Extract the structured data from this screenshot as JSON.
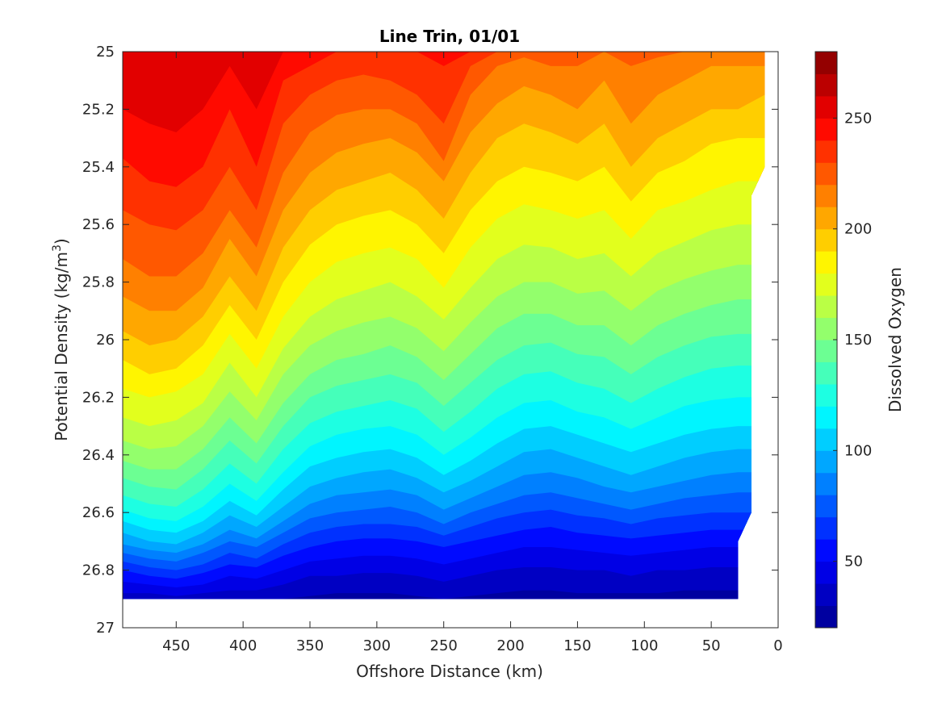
{
  "chart_data": {
    "type": "heatmap",
    "subtype": "filled-contour",
    "title": "Line Trin, 01/01",
    "xlabel": "Offshore Distance (km)",
    "ylabel": "Potential Density (kg/m",
    "ylabel_superscript": "3",
    "ylabel_suffix": ")",
    "colorbar_label": "Dissolved Oxygen",
    "x_axis_reversed": true,
    "y_axis_reversed": true,
    "xlim": [
      490,
      0
    ],
    "ylim": [
      25,
      27
    ],
    "x_ticks": [
      450,
      400,
      350,
      300,
      250,
      200,
      150,
      100,
      50,
      0
    ],
    "x_tick_labels": [
      "450",
      "400",
      "350",
      "300",
      "250",
      "200",
      "150",
      "100",
      "50",
      "0"
    ],
    "y_ticks": [
      25,
      25.2,
      25.4,
      25.6,
      25.8,
      26,
      26.2,
      26.4,
      26.6,
      26.8,
      27
    ],
    "y_tick_labels": [
      "25",
      "25.2",
      "25.4",
      "25.6",
      "25.8",
      "26",
      "26.2",
      "26.4",
      "26.6",
      "26.8",
      "27"
    ],
    "colorbar_range": [
      20,
      280
    ],
    "colorbar_level_step": 10,
    "colorbar_ticks": [
      50,
      100,
      150,
      200,
      250
    ],
    "colorbar_tick_labels": [
      "50",
      "100",
      "150",
      "200",
      "250"
    ],
    "colormap": "jet",
    "colormap_colors": [
      "#00008f",
      "#0000ff",
      "#00ffff",
      "#ffff00",
      "#ff0000",
      "#800000"
    ],
    "data_extent": {
      "x_range_km": [
        490,
        20
      ],
      "bottom_density_boundary": 26.9,
      "right_edge_x": [
        10,
        10,
        20,
        20,
        30,
        30
      ],
      "right_edge_density": [
        25,
        25.4,
        25.5,
        26.6,
        26.7,
        26.9
      ]
    },
    "x": [
      490,
      470,
      450,
      430,
      410,
      390,
      370,
      350,
      330,
      310,
      290,
      270,
      250,
      230,
      210,
      190,
      170,
      150,
      130,
      110,
      90,
      70,
      50,
      30,
      10
    ],
    "isolines": [
      {
        "level": 250,
        "density": [
          25.2,
          25.25,
          25.28,
          25.2,
          25.05,
          25.2,
          25.0,
          25.0,
          25.0,
          25.0,
          25.0,
          25.0,
          25.0,
          25.0,
          25.0,
          25.0,
          25.0,
          25.0,
          25.0,
          25.0,
          25.0,
          25.0,
          25.0,
          25.0,
          25.0
        ]
      },
      {
        "level": 240,
        "density": [
          25.37,
          25.45,
          25.47,
          25.4,
          25.2,
          25.4,
          25.1,
          25.05,
          25.0,
          25.0,
          25.0,
          25.0,
          25.05,
          25.0,
          25.0,
          25.0,
          25.0,
          25.0,
          25.0,
          25.0,
          25.0,
          25.0,
          25.0,
          25.0,
          25.0
        ]
      },
      {
        "level": 230,
        "density": [
          25.55,
          25.6,
          25.62,
          25.55,
          25.4,
          25.55,
          25.25,
          25.15,
          25.1,
          25.08,
          25.1,
          25.15,
          25.25,
          25.05,
          25.0,
          25.0,
          25.0,
          25.0,
          25.0,
          25.0,
          25.0,
          25.0,
          25.0,
          25.0,
          25.0
        ]
      },
      {
        "level": 220,
        "density": [
          25.72,
          25.78,
          25.78,
          25.7,
          25.55,
          25.68,
          25.42,
          25.28,
          25.22,
          25.2,
          25.2,
          25.25,
          25.38,
          25.15,
          25.05,
          25.02,
          25.05,
          25.05,
          25.0,
          25.05,
          25.02,
          25.0,
          25.0,
          25.0,
          25.0
        ]
      },
      {
        "level": 210,
        "density": [
          25.85,
          25.9,
          25.9,
          25.82,
          25.65,
          25.78,
          25.55,
          25.42,
          25.35,
          25.32,
          25.3,
          25.35,
          25.45,
          25.28,
          25.18,
          25.12,
          25.15,
          25.2,
          25.1,
          25.25,
          25.15,
          25.1,
          25.05,
          25.05,
          25.05
        ]
      },
      {
        "level": 200,
        "density": [
          25.97,
          26.02,
          26.0,
          25.92,
          25.78,
          25.9,
          25.68,
          25.55,
          25.48,
          25.45,
          25.42,
          25.48,
          25.58,
          25.42,
          25.3,
          25.25,
          25.28,
          25.32,
          25.25,
          25.4,
          25.3,
          25.25,
          25.2,
          25.2,
          25.15
        ]
      },
      {
        "level": 190,
        "density": [
          26.07,
          26.12,
          26.1,
          26.02,
          25.88,
          26.0,
          25.8,
          25.67,
          25.6,
          25.57,
          25.55,
          25.6,
          25.7,
          25.55,
          25.45,
          25.4,
          25.42,
          25.45,
          25.4,
          25.52,
          25.42,
          25.38,
          25.32,
          25.3,
          25.3
        ]
      },
      {
        "level": 180,
        "density": [
          26.17,
          26.2,
          26.18,
          26.12,
          25.98,
          26.1,
          25.92,
          25.8,
          25.73,
          25.7,
          25.68,
          25.72,
          25.82,
          25.68,
          25.58,
          25.53,
          25.55,
          25.58,
          25.55,
          25.65,
          25.55,
          25.52,
          25.48,
          25.45,
          25.45
        ]
      },
      {
        "level": 170,
        "density": [
          26.27,
          26.3,
          26.28,
          26.22,
          26.08,
          26.2,
          26.03,
          25.92,
          25.86,
          25.83,
          25.8,
          25.85,
          25.93,
          25.82,
          25.72,
          25.67,
          25.68,
          25.72,
          25.7,
          25.78,
          25.7,
          25.66,
          25.62,
          25.6,
          25.6
        ]
      },
      {
        "level": 160,
        "density": [
          26.35,
          26.38,
          26.37,
          26.3,
          26.18,
          26.28,
          26.12,
          26.02,
          25.97,
          25.94,
          25.92,
          25.96,
          26.04,
          25.94,
          25.85,
          25.8,
          25.8,
          25.84,
          25.83,
          25.9,
          25.83,
          25.79,
          25.76,
          25.74,
          25.74
        ]
      },
      {
        "level": 150,
        "density": [
          26.42,
          26.45,
          26.45,
          26.38,
          26.27,
          26.36,
          26.22,
          26.12,
          26.07,
          26.05,
          26.02,
          26.06,
          26.14,
          26.05,
          25.96,
          25.91,
          25.91,
          25.95,
          25.95,
          26.02,
          25.95,
          25.91,
          25.88,
          25.86,
          25.86
        ]
      },
      {
        "level": 140,
        "density": [
          26.48,
          26.51,
          26.52,
          26.45,
          26.35,
          26.43,
          26.3,
          26.2,
          26.16,
          26.14,
          26.12,
          26.15,
          26.23,
          26.15,
          26.07,
          26.02,
          26.01,
          26.05,
          26.06,
          26.12,
          26.06,
          26.02,
          25.99,
          25.98,
          25.98
        ]
      },
      {
        "level": 130,
        "density": [
          26.54,
          26.57,
          26.58,
          26.52,
          26.43,
          26.5,
          26.38,
          26.29,
          26.25,
          26.23,
          26.21,
          26.24,
          26.32,
          26.25,
          26.17,
          26.12,
          26.11,
          26.15,
          26.17,
          26.22,
          26.17,
          26.13,
          26.1,
          26.09,
          26.09
        ]
      },
      {
        "level": 120,
        "density": [
          26.59,
          26.62,
          26.63,
          26.58,
          26.5,
          26.56,
          26.46,
          26.37,
          26.33,
          26.31,
          26.3,
          26.33,
          26.4,
          26.34,
          26.27,
          26.22,
          26.21,
          26.25,
          26.27,
          26.31,
          26.27,
          26.23,
          26.21,
          26.2,
          26.2
        ]
      },
      {
        "level": 110,
        "density": [
          26.63,
          26.66,
          26.67,
          26.63,
          26.56,
          26.61,
          26.52,
          26.44,
          26.41,
          26.39,
          26.38,
          26.41,
          26.47,
          26.42,
          26.36,
          26.31,
          26.3,
          26.33,
          26.36,
          26.39,
          26.36,
          26.33,
          26.31,
          26.3,
          26.3
        ]
      },
      {
        "level": 100,
        "density": [
          26.67,
          26.7,
          26.71,
          26.67,
          26.61,
          26.65,
          26.58,
          26.51,
          26.48,
          26.46,
          26.45,
          26.48,
          26.53,
          26.49,
          26.44,
          26.39,
          26.38,
          26.41,
          26.44,
          26.47,
          26.44,
          26.41,
          26.39,
          26.38,
          26.38
        ]
      },
      {
        "level": 90,
        "density": [
          26.71,
          26.73,
          26.74,
          26.71,
          26.66,
          26.69,
          26.63,
          26.57,
          26.54,
          26.53,
          26.52,
          26.54,
          26.59,
          26.55,
          26.51,
          26.47,
          26.46,
          26.48,
          26.51,
          26.53,
          26.51,
          26.49,
          26.47,
          26.46,
          26.46
        ]
      },
      {
        "level": 80,
        "density": [
          26.74,
          26.76,
          26.77,
          26.74,
          26.7,
          26.72,
          26.67,
          26.62,
          26.6,
          26.59,
          26.58,
          26.6,
          26.64,
          26.6,
          26.57,
          26.54,
          26.53,
          26.55,
          26.57,
          26.59,
          26.57,
          26.55,
          26.54,
          26.53,
          26.53
        ]
      },
      {
        "level": 70,
        "density": [
          26.77,
          26.79,
          26.8,
          26.78,
          26.74,
          26.76,
          26.71,
          26.67,
          26.65,
          26.64,
          26.64,
          26.65,
          26.68,
          26.65,
          26.62,
          26.6,
          26.59,
          26.61,
          26.62,
          26.64,
          26.62,
          26.61,
          26.6,
          26.6,
          26.6
        ]
      },
      {
        "level": 60,
        "density": [
          26.8,
          26.82,
          26.83,
          26.81,
          26.78,
          26.79,
          26.75,
          26.72,
          26.7,
          26.69,
          26.69,
          26.7,
          26.72,
          26.7,
          26.68,
          26.66,
          26.65,
          26.67,
          26.68,
          26.69,
          26.68,
          26.67,
          26.66,
          26.66,
          26.66
        ]
      },
      {
        "level": 50,
        "density": [
          26.84,
          26.85,
          26.86,
          26.85,
          26.82,
          26.83,
          26.8,
          26.77,
          26.76,
          26.75,
          26.75,
          26.76,
          26.78,
          26.76,
          26.74,
          26.72,
          26.72,
          26.73,
          26.74,
          26.75,
          26.74,
          26.73,
          26.72,
          26.72,
          26.72
        ]
      },
      {
        "level": 40,
        "density": [
          26.88,
          26.88,
          26.89,
          26.88,
          26.87,
          26.87,
          26.85,
          26.82,
          26.82,
          26.81,
          26.81,
          26.82,
          26.84,
          26.82,
          26.8,
          26.79,
          26.79,
          26.8,
          26.8,
          26.82,
          26.8,
          26.8,
          26.79,
          26.79,
          26.79
        ]
      },
      {
        "level": 30,
        "density": [
          26.9,
          26.9,
          26.9,
          26.9,
          26.9,
          26.9,
          26.9,
          26.89,
          26.88,
          26.88,
          26.88,
          26.89,
          26.9,
          26.89,
          26.88,
          26.87,
          26.87,
          26.88,
          26.88,
          26.88,
          26.88,
          26.87,
          26.87,
          26.87,
          26.87
        ]
      }
    ]
  }
}
